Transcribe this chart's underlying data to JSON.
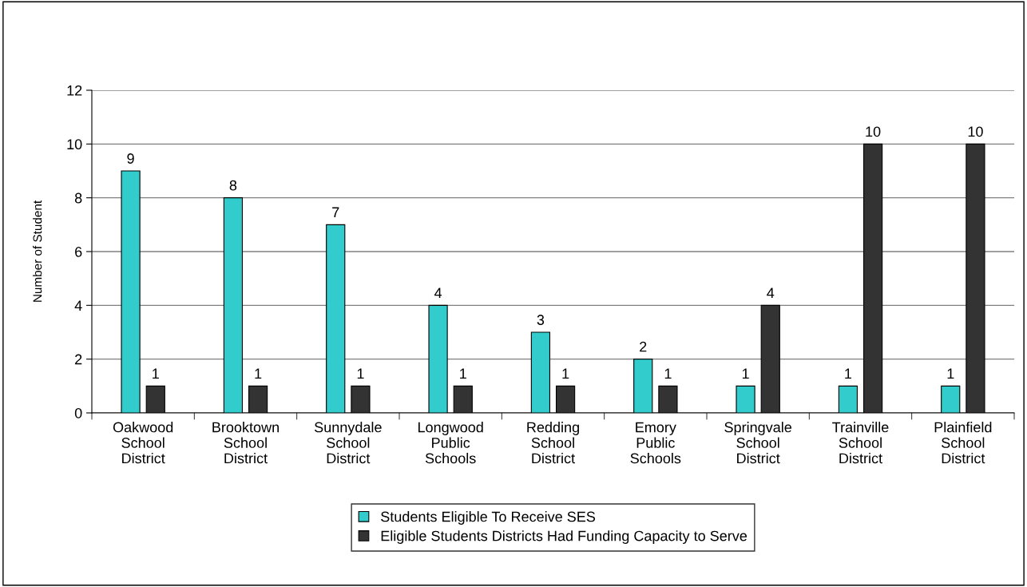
{
  "chart_data": {
    "type": "bar",
    "ylabel": "Number of Student",
    "categories": [
      "Oakwood\nSchool\nDistrict",
      "Brooktown\nSchool\nDistrict",
      "Sunnydale\nSchool\nDistrict",
      "Longwood\nPublic\nSchools",
      "Redding\nSchool\nDistrict",
      "Emory\nPublic\nSchools",
      "Springvale\nSchool\nDistrict",
      "Trainville\nSchool\nDistrict",
      "Plainfield\nSchool\nDistrict"
    ],
    "series": [
      {
        "name": "Students Eligible To Receive SES",
        "color": "#33cccc",
        "values": [
          9,
          8,
          7,
          4,
          3,
          2,
          1,
          1,
          1
        ]
      },
      {
        "name": "Eligible Students Districts Had Funding Capacity to Serve",
        "color": "#333333",
        "values": [
          1,
          1,
          1,
          1,
          1,
          1,
          4,
          10,
          10
        ]
      }
    ],
    "ylim": [
      0,
      12
    ],
    "yticks": [
      0,
      2,
      4,
      6,
      8,
      10,
      12
    ],
    "grid": "y",
    "legend": "bottom",
    "data_labels": true
  }
}
